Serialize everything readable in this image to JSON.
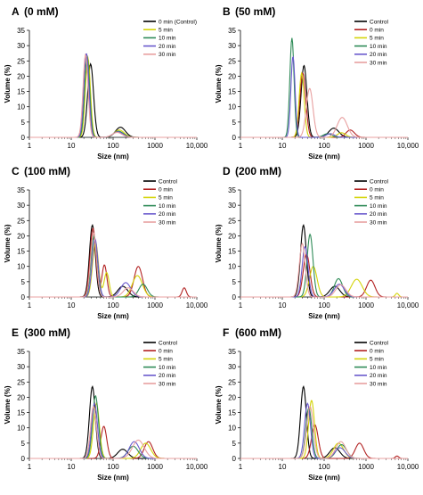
{
  "figure": {
    "chart_data": [
      {
        "type": "line",
        "panel_label": "A",
        "title": "(0 mM)",
        "xlabel": "Size (nm)",
        "ylabel": "Volume (%)",
        "xscale": "log",
        "xlim": [
          1,
          10000
        ],
        "ylim": [
          0,
          35
        ],
        "xticks": [
          "1",
          "10",
          "100",
          "1000",
          "10,000"
        ],
        "yticks": [
          "0",
          "5",
          "10",
          "15",
          "20",
          "25",
          "30",
          "35"
        ],
        "legend_position": "top-right",
        "series": [
          {
            "name": "0 min (Control)",
            "color": "#000000",
            "peaks": [
              [
                29,
                24,
                0.07
              ],
              [
                150,
                3.3,
                0.12
              ]
            ]
          },
          {
            "name": "5 min",
            "color": "#d4d40a",
            "peaks": [
              [
                25,
                26,
                0.06
              ],
              [
                140,
                2.4,
                0.12
              ]
            ]
          },
          {
            "name": "10 min",
            "color": "#2e8b57",
            "peaks": [
              [
                24,
                26.5,
                0.06
              ],
              [
                135,
                2.0,
                0.12
              ]
            ]
          },
          {
            "name": "20 min",
            "color": "#6a5acd",
            "peaks": [
              [
                23,
                27.5,
                0.06
              ],
              [
                130,
                1.8,
                0.12
              ]
            ]
          },
          {
            "name": "30 min",
            "color": "#e8a0a0",
            "peaks": [
              [
                22,
                27,
                0.06
              ],
              [
                125,
                1.6,
                0.12
              ]
            ]
          }
        ]
      },
      {
        "type": "line",
        "panel_label": "B",
        "title": "(50 mM)",
        "xlabel": "Size (nm)",
        "ylabel": "Volume (%)",
        "xscale": "log",
        "xlim": [
          1,
          10000
        ],
        "ylim": [
          0,
          35
        ],
        "xticks": [
          "1",
          "10",
          "100",
          "1000",
          "10,000"
        ],
        "yticks": [
          "0",
          "5",
          "10",
          "15",
          "20",
          "25",
          "30",
          "35"
        ],
        "legend_position": "top-right",
        "series": [
          {
            "name": "Control",
            "color": "#000000",
            "peaks": [
              [
                33,
                23.5,
                0.07
              ],
              [
                170,
                3,
                0.12
              ]
            ]
          },
          {
            "name": "0 min",
            "color": "#b22222",
            "peaks": [
              [
                31,
                21,
                0.07
              ],
              [
                420,
                2.4,
                0.1
              ]
            ]
          },
          {
            "name": "5 min",
            "color": "#d4d40a",
            "peaks": [
              [
                29,
                21,
                0.06
              ],
              [
                260,
                1.5,
                0.1
              ]
            ]
          },
          {
            "name": "10 min",
            "color": "#2e8b57",
            "peaks": [
              [
                17,
                32.5,
                0.05
              ],
              [
                120,
                1.2,
                0.1
              ]
            ]
          },
          {
            "name": "20 min",
            "color": "#6a5acd",
            "peaks": [
              [
                18,
                26.5,
                0.05
              ],
              [
                140,
                1.2,
                0.1
              ]
            ]
          },
          {
            "name": "30 min",
            "color": "#e8a0a0",
            "peaks": [
              [
                45,
                16,
                0.08
              ],
              [
                270,
                6.5,
                0.12
              ]
            ]
          }
        ]
      },
      {
        "type": "line",
        "panel_label": "C",
        "title": "(100 mM)",
        "xlabel": "Size (nm)",
        "ylabel": "Volume (%)",
        "xscale": "log",
        "xlim": [
          1,
          10000
        ],
        "ylim": [
          0,
          35
        ],
        "xticks": [
          "1",
          "10",
          "100",
          "1000",
          "10,000"
        ],
        "yticks": [
          "0",
          "5",
          "10",
          "15",
          "20",
          "25",
          "30",
          "35"
        ],
        "legend_position": "top-right",
        "series": [
          {
            "name": "Control",
            "color": "#000000",
            "peaks": [
              [
                32,
                23.5,
                0.07
              ],
              [
                170,
                3.5,
                0.12
              ]
            ]
          },
          {
            "name": "0 min",
            "color": "#b22222",
            "peaks": [
              [
                33,
                22.5,
                0.07
              ],
              [
                62,
                10.5,
                0.06
              ],
              [
                400,
                10,
                0.1
              ],
              [
                5000,
                3,
                0.05
              ]
            ]
          },
          {
            "name": "5 min",
            "color": "#d4d40a",
            "peaks": [
              [
                38,
                18,
                0.07
              ],
              [
                70,
                8,
                0.06
              ],
              [
                380,
                7,
                0.12
              ]
            ]
          },
          {
            "name": "10 min",
            "color": "#2e8b57",
            "peaks": [
              [
                35,
                20,
                0.07
              ],
              [
                520,
                4.2,
                0.1
              ]
            ]
          },
          {
            "name": "20 min",
            "color": "#6a5acd",
            "peaks": [
              [
                37,
                19,
                0.07
              ],
              [
                200,
                4.7,
                0.12
              ]
            ]
          },
          {
            "name": "30 min",
            "color": "#e8a0a0",
            "peaks": [
              [
                34,
                21,
                0.07
              ],
              [
                230,
                3,
                0.12
              ]
            ]
          }
        ]
      },
      {
        "type": "line",
        "panel_label": "D",
        "title": "(200 mM)",
        "xlabel": "Size (nm)",
        "ylabel": "Volume (%)",
        "xscale": "log",
        "xlim": [
          1,
          10000
        ],
        "ylim": [
          0,
          35
        ],
        "xticks": [
          "1",
          "10",
          "100",
          "1000",
          "10,000"
        ],
        "yticks": [
          "0",
          "5",
          "10",
          "15",
          "20",
          "25",
          "30",
          "35"
        ],
        "legend_position": "top-right",
        "series": [
          {
            "name": "Control",
            "color": "#000000",
            "peaks": [
              [
                32,
                23.5,
                0.07
              ],
              [
                180,
                3.5,
                0.12
              ]
            ]
          },
          {
            "name": "0 min",
            "color": "#b22222",
            "peaks": [
              [
                38,
                14,
                0.08
              ],
              [
                1300,
                5.5,
                0.1
              ]
            ]
          },
          {
            "name": "5 min",
            "color": "#d4d40a",
            "peaks": [
              [
                55,
                10,
                0.09
              ],
              [
                600,
                5.8,
                0.13
              ],
              [
                5500,
                1.2,
                0.04
              ]
            ]
          },
          {
            "name": "10 min",
            "color": "#2e8b57",
            "peaks": [
              [
                46,
                20.5,
                0.07
              ],
              [
                220,
                6,
                0.1
              ]
            ]
          },
          {
            "name": "20 min",
            "color": "#6a5acd",
            "peaks": [
              [
                35,
                16.5,
                0.07
              ],
              [
                230,
                4.2,
                0.12
              ]
            ]
          },
          {
            "name": "30 min",
            "color": "#e8a0a0",
            "peaks": [
              [
                30,
                17.5,
                0.07
              ],
              [
                250,
                4,
                0.12
              ]
            ]
          }
        ]
      },
      {
        "type": "line",
        "panel_label": "E",
        "title": "(300 mM)",
        "xlabel": "Size (nm)",
        "ylabel": "Volume (%)",
        "xscale": "log",
        "xlim": [
          1,
          10000
        ],
        "ylim": [
          0,
          35
        ],
        "xticks": [
          "1",
          "10",
          "100",
          "1000",
          "10,000"
        ],
        "yticks": [
          "0",
          "5",
          "10",
          "15",
          "20",
          "25",
          "30",
          "35"
        ],
        "legend_position": "top-right",
        "series": [
          {
            "name": "Control",
            "color": "#000000",
            "peaks": [
              [
                32,
                23.5,
                0.07
              ],
              [
                170,
                3,
                0.12
              ]
            ]
          },
          {
            "name": "0 min",
            "color": "#b22222",
            "peaks": [
              [
                60,
                10.5,
                0.07
              ],
              [
                700,
                5.5,
                0.1
              ]
            ]
          },
          {
            "name": "5 min",
            "color": "#d4d40a",
            "peaks": [
              [
                40,
                18,
                0.07
              ],
              [
                600,
                5,
                0.12
              ]
            ]
          },
          {
            "name": "10 min",
            "color": "#2e8b57",
            "peaks": [
              [
                38,
                20.5,
                0.07
              ],
              [
                300,
                4,
                0.12
              ]
            ]
          },
          {
            "name": "20 min",
            "color": "#6a5acd",
            "peaks": [
              [
                36,
                18,
                0.07
              ],
              [
                320,
                5.5,
                0.12
              ]
            ]
          },
          {
            "name": "30 min",
            "color": "#e8a0a0",
            "peaks": [
              [
                34,
                17,
                0.07
              ],
              [
                400,
                6,
                0.14
              ]
            ]
          }
        ]
      },
      {
        "type": "line",
        "panel_label": "F",
        "title": "(600 mM)",
        "xlabel": "Size (nm)",
        "ylabel": "Volume (%)",
        "xscale": "log",
        "xlim": [
          1,
          10000
        ],
        "ylim": [
          0,
          35
        ],
        "xticks": [
          "1",
          "10",
          "100",
          "1000",
          "10,000"
        ],
        "yticks": [
          "0",
          "5",
          "10",
          "15",
          "20",
          "25",
          "30",
          "35"
        ],
        "legend_position": "top-right",
        "series": [
          {
            "name": "Control",
            "color": "#000000",
            "peaks": [
              [
                32,
                23.5,
                0.07
              ],
              [
                180,
                3.5,
                0.12
              ]
            ]
          },
          {
            "name": "0 min",
            "color": "#b22222",
            "peaks": [
              [
                60,
                11,
                0.08
              ],
              [
                700,
                5,
                0.1
              ],
              [
                5500,
                0.8,
                0.04
              ]
            ]
          },
          {
            "name": "5 min",
            "color": "#d4d40a",
            "peaks": [
              [
                50,
                19,
                0.07
              ],
              [
                220,
                5,
                0.12
              ]
            ]
          },
          {
            "name": "10 min",
            "color": "#2e8b57",
            "peaks": [
              [
                43,
                16.5,
                0.07
              ],
              [
                260,
                4.5,
                0.12
              ]
            ]
          },
          {
            "name": "20 min",
            "color": "#6a5acd",
            "peaks": [
              [
                40,
                18,
                0.07
              ],
              [
                240,
                3.5,
                0.12
              ]
            ]
          },
          {
            "name": "30 min",
            "color": "#e8a0a0",
            "peaks": [
              [
                46,
                17,
                0.08
              ],
              [
                250,
                5.5,
                0.12
              ]
            ]
          }
        ]
      }
    ]
  }
}
